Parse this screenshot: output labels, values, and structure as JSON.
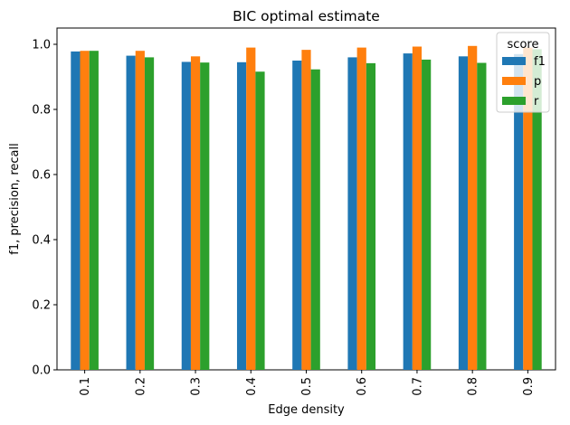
{
  "chart_data": {
    "type": "bar",
    "title": "BIC optimal estimate",
    "xlabel": "Edge density",
    "ylabel": "f1, precision, recall",
    "categories": [
      "0.1",
      "0.2",
      "0.3",
      "0.4",
      "0.5",
      "0.6",
      "0.7",
      "0.8",
      "0.9"
    ],
    "series": [
      {
        "name": "f1",
        "color": "#1f77b4",
        "values": [
          0.978,
          0.965,
          0.946,
          0.945,
          0.95,
          0.96,
          0.972,
          0.963,
          0.97
        ]
      },
      {
        "name": "p",
        "color": "#ff7f0e",
        "values": [
          0.98,
          0.98,
          0.963,
          0.99,
          0.983,
          0.99,
          0.993,
          0.995,
          0.99
        ]
      },
      {
        "name": "r",
        "color": "#2ca02c",
        "values": [
          0.98,
          0.96,
          0.944,
          0.916,
          0.923,
          0.942,
          0.953,
          0.943,
          0.985
        ]
      }
    ],
    "ylim": [
      0,
      1.05
    ],
    "yticks": [
      "0.0",
      "0.2",
      "0.4",
      "0.6",
      "0.8",
      "1.0"
    ],
    "legend": {
      "title": "score",
      "position": "top-right"
    },
    "grid": false
  }
}
